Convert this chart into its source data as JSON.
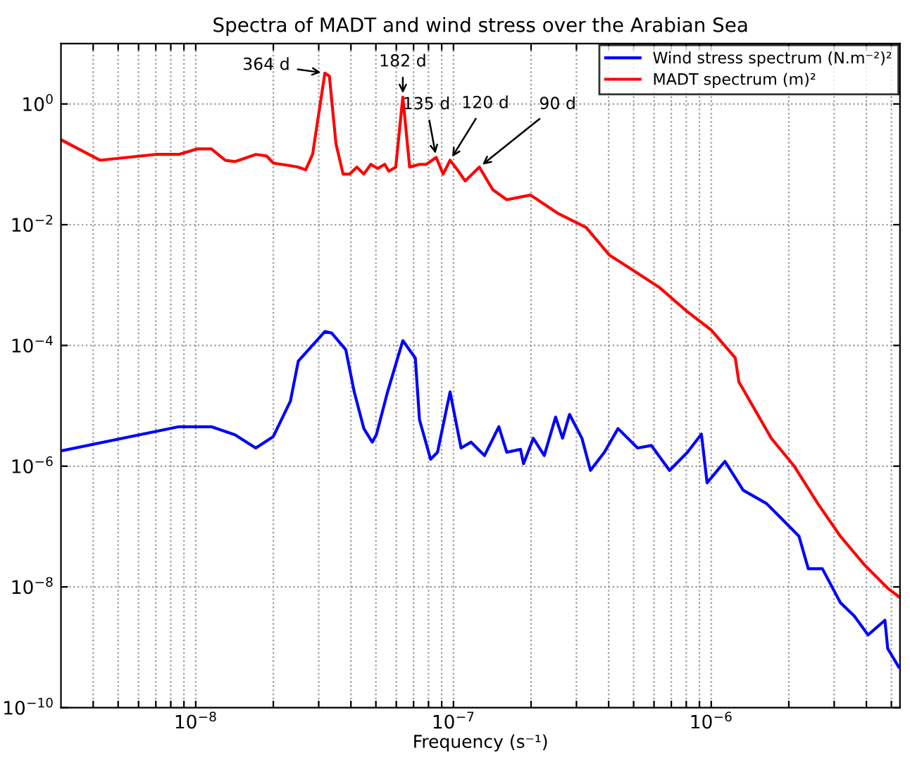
{
  "chart_data": {
    "type": "line",
    "title": "Spectra of MADT and wind stress over the Arabian Sea",
    "xlabel": "Frequency (s⁻¹)",
    "log": "xy",
    "grid": true,
    "legend": "top right",
    "line_style": "solid",
    "marker": "none",
    "xlim": [
      3e-09,
      5.4e-06
    ],
    "ylim": [
      1e-10,
      10
    ],
    "xticks": [
      {
        "value": 4e-09,
        "label": null
      },
      {
        "value": 5e-09,
        "label": null
      },
      {
        "value": 6e-09,
        "label": null
      },
      {
        "value": 7e-09,
        "label": null
      },
      {
        "value": 8e-09,
        "label": null
      },
      {
        "value": 9e-09,
        "label": null
      },
      {
        "value": 1e-08,
        "label": "10$^{−8}$"
      },
      {
        "value": 2e-08,
        "label": null
      },
      {
        "value": 3e-08,
        "label": null
      },
      {
        "value": 4e-08,
        "label": null
      },
      {
        "value": 5e-08,
        "label": null
      },
      {
        "value": 6e-08,
        "label": null
      },
      {
        "value": 7e-08,
        "label": null
      },
      {
        "value": 8e-08,
        "label": null
      },
      {
        "value": 9e-08,
        "label": null
      },
      {
        "value": 1e-07,
        "label": "10$^{−7}$"
      },
      {
        "value": 2e-07,
        "label": null
      },
      {
        "value": 3e-07,
        "label": null
      },
      {
        "value": 4e-07,
        "label": null
      },
      {
        "value": 5e-07,
        "label": null
      },
      {
        "value": 6e-07,
        "label": null
      },
      {
        "value": 7e-07,
        "label": null
      },
      {
        "value": 8e-07,
        "label": null
      },
      {
        "value": 9e-07,
        "label": null
      },
      {
        "value": 1e-06,
        "label": "10$^{−6}$"
      },
      {
        "value": 2e-06,
        "label": null
      },
      {
        "value": 3e-06,
        "label": null
      },
      {
        "value": 4e-06,
        "label": null
      },
      {
        "value": 5e-06,
        "label": null
      }
    ],
    "yticks": [
      {
        "value": 1e-10,
        "label": "10$^{−10}$"
      },
      {
        "value": 1e-08,
        "label": "10$^{−8}$"
      },
      {
        "value": 1e-06,
        "label": "10$^{−6}$"
      },
      {
        "value": 0.0001,
        "label": "10$^{−4}$"
      },
      {
        "value": 0.01,
        "label": "10$^{−2}$"
      },
      {
        "value": 1,
        "label": "10$^{0}$"
      }
    ],
    "series": [
      {
        "name": "Wind stress spectrum (N.m⁻²)²",
        "color": "#0000ff",
        "x": [
          3.03e-09,
          8.6e-09,
          1.15e-08,
          1.42e-08,
          1.71e-08,
          2e-08,
          2.33e-08,
          2.5e-08,
          3.17e-08,
          3.37e-08,
          3.82e-08,
          4.12e-08,
          4.49e-08,
          4.84e-08,
          5.02e-08,
          5.55e-08,
          6.36e-08,
          7.11e-08,
          7.38e-08,
          8.15e-08,
          8.67e-08,
          9.7e-08,
          1.07e-07,
          1.17e-07,
          1.32e-07,
          1.5e-07,
          1.61e-07,
          1.82e-07,
          1.87e-07,
          2.04e-07,
          2.25e-07,
          2.49e-07,
          2.65e-07,
          2.82e-07,
          3.15e-07,
          3.4e-07,
          3.85e-07,
          4.35e-07,
          5.18e-07,
          5.86e-07,
          6.89e-07,
          8.09e-07,
          9.16e-07,
          9.64e-07,
          1.13e-06,
          1.33e-06,
          1.64e-06,
          1.86e-06,
          2.19e-06,
          2.38e-06,
          2.7e-06,
          3.17e-06,
          3.59e-06,
          4.06e-06,
          4.72e-06,
          4.84e-06,
          5.34e-06
        ],
        "values": [
          1.8e-06,
          4.5e-06,
          4.5e-06,
          3.3e-06,
          2e-06,
          3.1e-06,
          1.2e-05,
          5.5e-05,
          0.00017,
          0.00016,
          8.5e-05,
          1.7e-05,
          4.2e-06,
          2.5e-06,
          3.3e-06,
          1.7e-05,
          0.00012,
          6.2e-05,
          5.9e-06,
          1.3e-06,
          1.7e-06,
          1.7e-05,
          2e-06,
          2.5e-06,
          1.5e-06,
          4.5e-06,
          1.7e-06,
          1.9e-06,
          1.1e-06,
          2.9e-06,
          1.5e-06,
          6.5e-06,
          2.9e-06,
          7.2e-06,
          2.9e-06,
          8.5e-07,
          1.7e-06,
          4.2e-06,
          2e-06,
          2.2e-06,
          8.5e-07,
          1.7e-06,
          3.4e-06,
          5.3e-07,
          1.2e-06,
          4e-07,
          2.4e-07,
          1.4e-07,
          6.9e-08,
          2e-08,
          2e-08,
          5.5e-09,
          3.3e-09,
          1.6e-09,
          2.8e-09,
          9.5e-10,
          4.7e-10
        ]
      },
      {
        "name": "MADT spectrum (m)²",
        "color": "#ff0000",
        "x": [
          3.03e-09,
          4.25e-09,
          6.98e-09,
          8.6e-09,
          1.01e-08,
          1.15e-08,
          1.3e-08,
          1.42e-08,
          1.71e-08,
          1.88e-08,
          2e-08,
          2.33e-08,
          2.5e-08,
          2.67e-08,
          2.84e-08,
          3.17e-08,
          3.3e-08,
          3.5e-08,
          3.73e-08,
          3.96e-08,
          4.22e-08,
          4.49e-08,
          4.78e-08,
          5.08e-08,
          5.41e-08,
          5.61e-08,
          5.97e-08,
          6.36e-08,
          6.76e-08,
          7.38e-08,
          7.85e-08,
          8.57e-08,
          9.12e-08,
          9.7e-08,
          1.045e-07,
          1.11e-07,
          1.26e-07,
          1.42e-07,
          1.61e-07,
          1.99e-07,
          2.55e-07,
          3.27e-07,
          4.04e-07,
          4.93e-07,
          6.32e-07,
          8.09e-07,
          1e-06,
          1.24e-06,
          1.28e-06,
          1.71e-06,
          2.1e-06,
          2.6e-06,
          3.17e-06,
          3.92e-06,
          4.84e-06,
          5.34e-06
        ],
        "values": [
          0.25,
          0.117,
          0.146,
          0.146,
          0.18,
          0.18,
          0.117,
          0.111,
          0.146,
          0.138,
          0.105,
          0.095,
          0.09,
          0.081,
          0.146,
          3.25,
          2.9,
          0.22,
          0.069,
          0.069,
          0.09,
          0.069,
          0.1,
          0.085,
          0.1,
          0.077,
          0.09,
          1.3,
          0.09,
          0.1,
          0.1,
          0.13,
          0.069,
          0.117,
          0.077,
          0.053,
          0.09,
          0.038,
          0.026,
          0.031,
          0.0153,
          0.009,
          0.0031,
          0.0018,
          0.0009,
          0.00036,
          0.00018,
          6.2e-05,
          2.5e-05,
          2.9e-06,
          1e-06,
          2.35e-07,
          6.9e-08,
          2.35e-08,
          9.5e-09,
          6.9e-09
        ]
      }
    ],
    "annotations": [
      {
        "text": "364 d",
        "x": 3.17e-08,
        "y": 3.25
      },
      {
        "text": "182 d",
        "x": 6.36e-08,
        "y": 1.3
      },
      {
        "text": "135 d",
        "x": 8.57e-08,
        "y": 0.13
      },
      {
        "text": "120 d",
        "x": 9.7e-08,
        "y": 0.117
      },
      {
        "text": "90 d",
        "x": 1.26e-07,
        "y": 0.09
      }
    ]
  }
}
